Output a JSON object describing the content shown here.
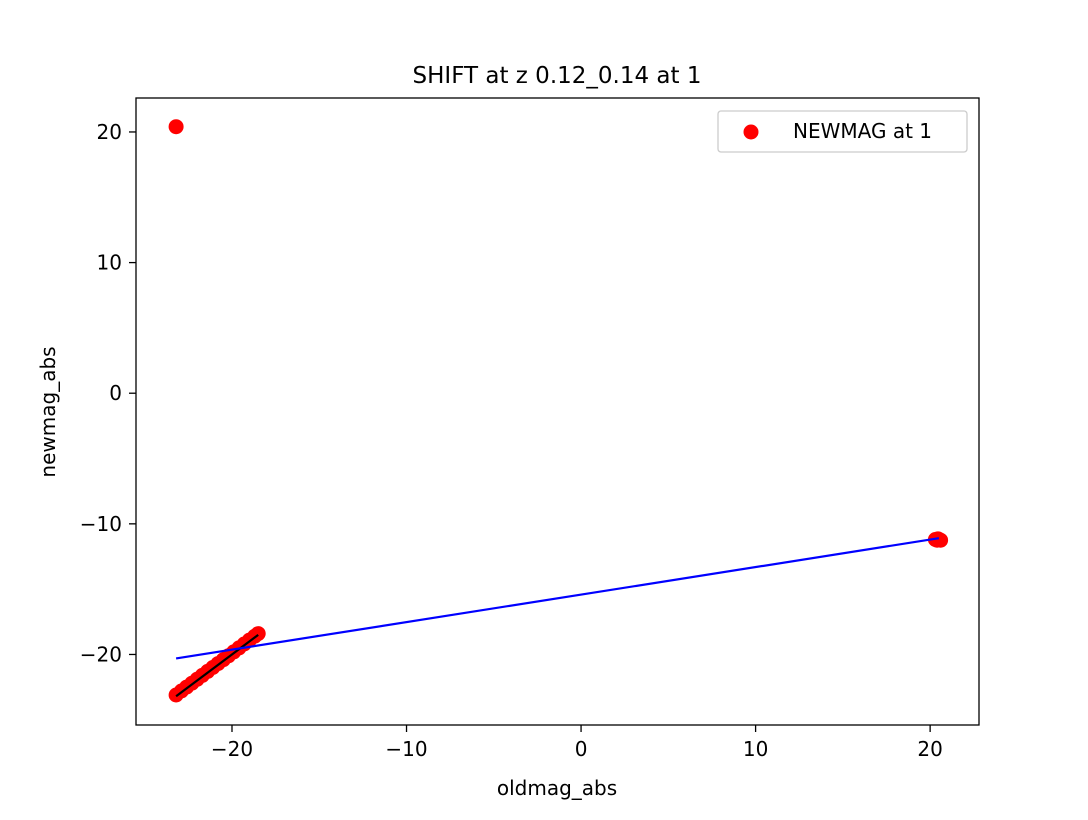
{
  "chart_data": {
    "type": "scatter",
    "title": "SHIFT at z 0.12_0.14 at 1",
    "xlabel": "oldmag_abs",
    "ylabel": "newmag_abs",
    "xlim": [
      -25.5,
      22.8
    ],
    "ylim": [
      -25.4,
      22.6
    ],
    "x_ticks": [
      -20,
      -10,
      0,
      10,
      20
    ],
    "y_ticks": [
      -20,
      -10,
      0,
      10,
      20
    ],
    "x_tick_labels": [
      "−20",
      "−10",
      "0",
      "10",
      "20"
    ],
    "y_tick_labels": [
      "−20",
      "−10",
      "0",
      "10",
      "20"
    ],
    "grid": false,
    "legend_position": "upper right",
    "legend": [
      {
        "label": "NEWMAG at 1",
        "color": "#ff0000",
        "marker": "circle"
      }
    ],
    "series": [
      {
        "name": "NEWMAG at 1",
        "kind": "scatter",
        "color": "#ff0000",
        "points": [
          [
            -23.2,
            20.4
          ],
          [
            -23.2,
            -23.1
          ],
          [
            -22.9,
            -22.8
          ],
          [
            -22.6,
            -22.5
          ],
          [
            -22.3,
            -22.2
          ],
          [
            -22.0,
            -21.9
          ],
          [
            -21.7,
            -21.6
          ],
          [
            -21.4,
            -21.3
          ],
          [
            -21.1,
            -21.0
          ],
          [
            -20.8,
            -20.7
          ],
          [
            -20.5,
            -20.4
          ],
          [
            -20.2,
            -20.1
          ],
          [
            -19.9,
            -19.8
          ],
          [
            -19.6,
            -19.5
          ],
          [
            -19.3,
            -19.2
          ],
          [
            -19.0,
            -18.9
          ],
          [
            -18.7,
            -18.6
          ],
          [
            -18.5,
            -18.4
          ],
          [
            20.3,
            -11.2
          ],
          [
            20.4,
            -11.25
          ],
          [
            20.5,
            -11.2
          ],
          [
            20.6,
            -11.25
          ],
          [
            20.45,
            -11.15
          ]
        ]
      },
      {
        "kind": "line",
        "color": "#000000",
        "points": [
          [
            -23.2,
            -23.2
          ],
          [
            -18.5,
            -18.5
          ]
        ]
      },
      {
        "kind": "line",
        "color": "#0000ff",
        "points": [
          [
            -23.2,
            -20.3
          ],
          [
            20.5,
            -11.1
          ]
        ]
      }
    ]
  }
}
